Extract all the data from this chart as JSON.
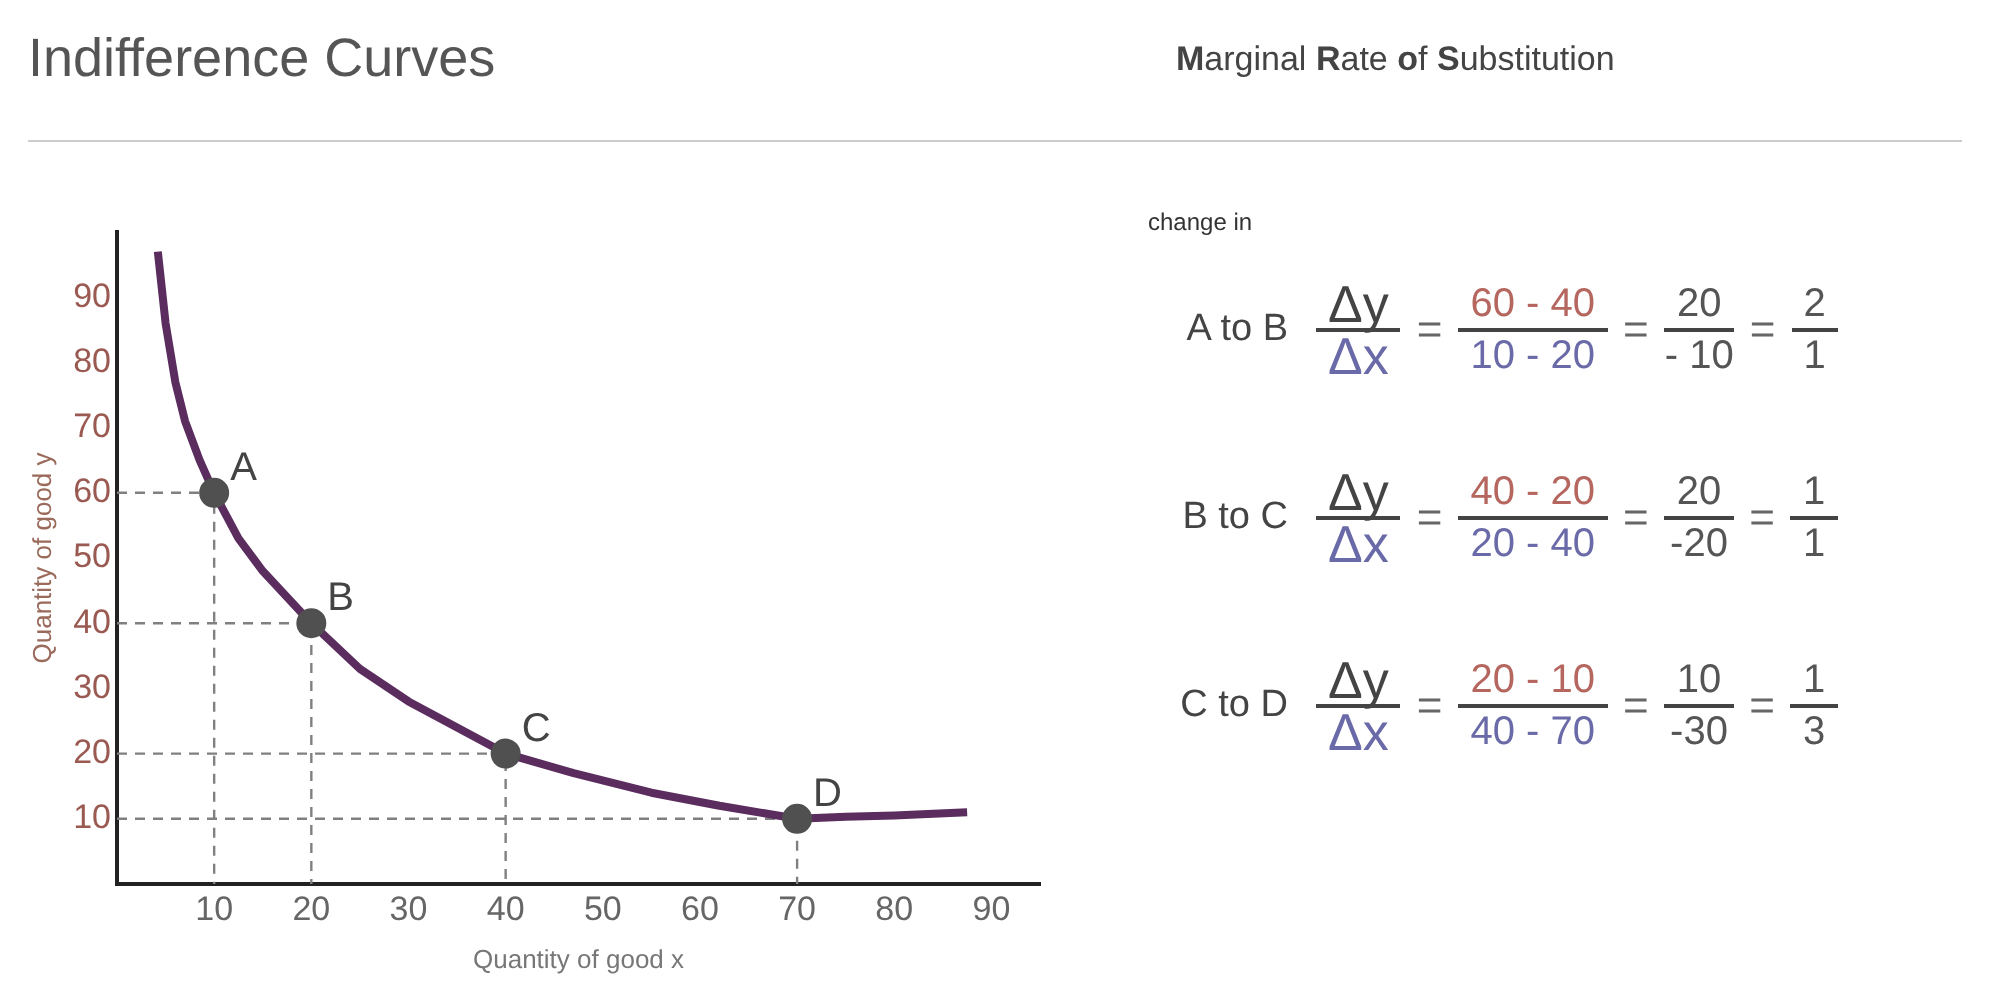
{
  "chart_data": {
    "type": "line",
    "title": "Indifference Curves",
    "subtitle": "Marginal Rate of Substitution",
    "xlabel": "Quantity of good x",
    "ylabel": "Quantity of good y",
    "xlim": [
      0,
      95
    ],
    "xticks": [
      10,
      20,
      30,
      40,
      50,
      60,
      70,
      80,
      90
    ],
    "ylim": [
      0,
      100
    ],
    "yticks": [
      10,
      20,
      30,
      40,
      50,
      60,
      70,
      80,
      90
    ],
    "grid": false,
    "legend": false,
    "series": [
      {
        "color": "#5a2d5e",
        "marker": "none",
        "line_style": "solid",
        "x": [
          4.2,
          5,
          6,
          7,
          8.5,
          10,
          12.5,
          15,
          20,
          25,
          30,
          35,
          40,
          47,
          55,
          62,
          70,
          75,
          80,
          87.5
        ],
        "values": [
          97,
          86,
          77,
          71,
          65,
          60,
          53,
          48,
          40,
          33,
          28,
          24,
          20,
          17,
          14,
          12,
          10,
          10.3,
          10.5,
          11
        ]
      },
      {
        "type": "scatter",
        "color": "#505050",
        "marker": "circle",
        "x": [
          10,
          20,
          40,
          70
        ],
        "values": [
          60,
          40,
          20,
          10
        ]
      },
      {
        "type": "line",
        "color": "#808080",
        "marker": "none",
        "line_style": "dashed",
        "x": [
          0,
          10,
          10
        ],
        "values": [
          60,
          60,
          0
        ]
      },
      {
        "type": "line",
        "color": "#808080",
        "marker": "none",
        "line_style": "dashed",
        "x": [
          0,
          20,
          20
        ],
        "values": [
          40,
          40,
          0
        ]
      },
      {
        "type": "line",
        "color": "#808080",
        "marker": "none",
        "line_style": "dashed",
        "x": [
          0,
          40,
          40
        ],
        "values": [
          20,
          20,
          0
        ]
      },
      {
        "type": "line",
        "color": "#808080",
        "marker": "none",
        "line_style": "dashed",
        "x": [
          0,
          70,
          70
        ],
        "values": [
          10,
          10,
          0
        ]
      }
    ],
    "annotations": [
      {
        "text": "A",
        "x": 10,
        "y": 60
      },
      {
        "text": "B",
        "x": 20,
        "y": 40
      },
      {
        "text": "C",
        "x": 40,
        "y": 20
      },
      {
        "text": "D",
        "x": 70,
        "y": 10
      },
      "change in",
      "A to B",
      "Δy",
      "Δx",
      "=",
      "60 - 40",
      "10 - 20",
      "=",
      "20",
      "- 10",
      "=",
      "2",
      "1",
      "B to C",
      "Δy",
      "Δx",
      "=",
      "40 - 20",
      "20 - 40",
      "=",
      "20",
      "-20",
      "=",
      "1",
      "1",
      "C to D",
      "Δy",
      "Δx",
      "=",
      "20 - 10",
      "40 - 70",
      "=",
      "10",
      "-30",
      "=",
      "1",
      "3"
    ]
  }
}
